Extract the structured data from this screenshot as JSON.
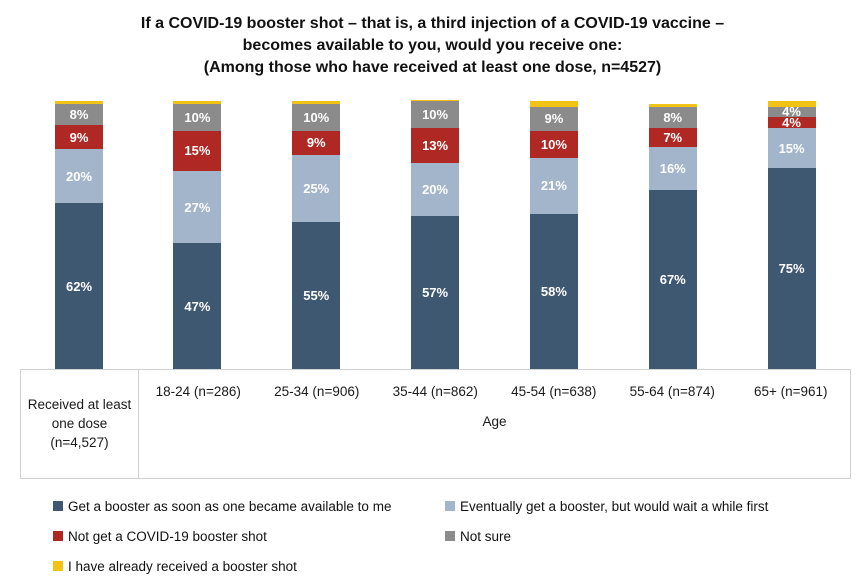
{
  "title": {
    "line1": "If a COVID-19 booster shot – that is, a third injection of a COVID-19 vaccine –",
    "line2": "becomes available to you, would you receive one:",
    "line3": "(Among those who have received at least one dose, n=4527)"
  },
  "chart_data": {
    "type": "bar",
    "stacked": true,
    "orientation": "vertical",
    "title": "If a COVID-19 booster shot – that is, a third injection of a COVID-19 vaccine – becomes available to you, would you receive one: (Among those who have received at least one dose, n=4527)",
    "categories": [
      "Received at least one dose (n=4,527)",
      "18-24 (n=286)",
      "25-34 (n=906)",
      "35-44 (n=862)",
      "45-54 (n=638)",
      "55-64 (n=874)",
      "65+ (n=961)"
    ],
    "xlabel": "Age",
    "ylabel": "",
    "ylim": [
      0,
      100
    ],
    "value_suffix": "%",
    "grid": false,
    "legend_position": "bottom-two-columns",
    "series": [
      {
        "name": "Get a booster as soon as one became available to me",
        "color": "#3F5872",
        "label_color": "#ffffff",
        "labeled": true,
        "values": [
          62,
          47,
          55,
          57,
          58,
          67,
          75
        ]
      },
      {
        "name": "Eventually get a booster, but would wait a while first",
        "color": "#A2B5CB",
        "label_color": "#ffffff",
        "labeled": true,
        "values": [
          20,
          27,
          25,
          20,
          21,
          16,
          15
        ]
      },
      {
        "name": "Not get a COVID-19 booster shot",
        "color": "#B02824",
        "label_color": "#ffffff",
        "labeled": true,
        "values": [
          9,
          15,
          9,
          13,
          10,
          7,
          4
        ]
      },
      {
        "name": "Not sure",
        "color": "#8B8B8B",
        "label_color": "#ffffff",
        "labeled": true,
        "values": [
          8,
          10,
          10,
          10,
          9,
          8,
          4
        ]
      },
      {
        "name": "I have already received a booster shot",
        "color": "#F2C214",
        "label_color": "#ffffff",
        "labeled": false,
        "values": [
          1,
          1,
          1,
          0.5,
          2,
          1,
          2
        ]
      }
    ],
    "legend_columns": [
      [
        0,
        2,
        4
      ],
      [
        1,
        3
      ]
    ]
  }
}
